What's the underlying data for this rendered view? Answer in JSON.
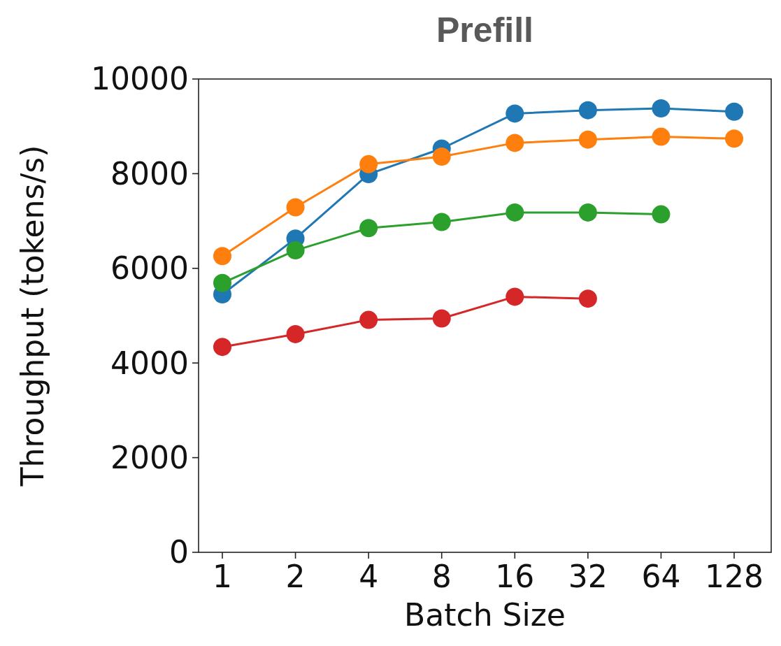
{
  "chart_data": {
    "type": "line",
    "title": "Prefill",
    "xlabel": "Batch Size",
    "ylabel": "Throughput (tokens/s)",
    "categories": [
      "1",
      "2",
      "4",
      "8",
      "16",
      "32",
      "64",
      "128"
    ],
    "ylim": [
      0,
      10000
    ],
    "yticks": [
      0,
      2000,
      4000,
      6000,
      8000,
      10000
    ],
    "grid": false,
    "marker": "circle",
    "line_style": "solid",
    "series": [
      {
        "color": "#1f77b4",
        "values": [
          5450,
          6630,
          7990,
          8530,
          9270,
          9340,
          9380,
          9310
        ]
      },
      {
        "color": "#ff7f0e",
        "values": [
          6260,
          7290,
          8200,
          8360,
          8650,
          8720,
          8780,
          8740
        ]
      },
      {
        "color": "#2ca02c",
        "values": [
          5690,
          6380,
          6850,
          6980,
          7180,
          7180,
          7140,
          null
        ]
      },
      {
        "color": "#d62728",
        "values": [
          4340,
          4610,
          4910,
          4940,
          5400,
          5360,
          null,
          null
        ]
      }
    ]
  }
}
